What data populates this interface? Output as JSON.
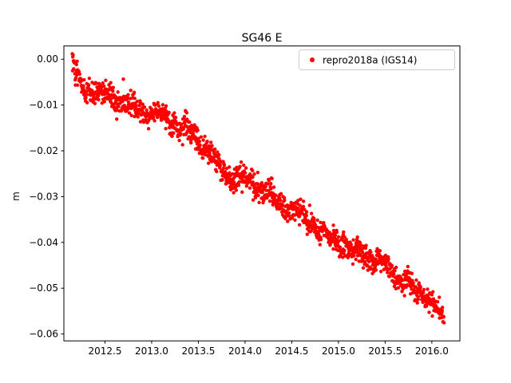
{
  "chart_data": {
    "type": "scatter",
    "title": "SG46 E",
    "xlabel": "",
    "ylabel": "m",
    "xlim": [
      2012.06,
      2016.3
    ],
    "ylim": [
      -0.0615,
      0.0029
    ],
    "x_ticks": [
      2012.5,
      2013.0,
      2013.5,
      2014.0,
      2014.5,
      2015.0,
      2015.5,
      2016.0
    ],
    "x_tick_labels": [
      "2012.5",
      "2013.0",
      "2013.5",
      "2014.0",
      "2014.5",
      "2015.0",
      "2015.5",
      "2016.0"
    ],
    "y_ticks": [
      0.0,
      -0.01,
      -0.02,
      -0.03,
      -0.04,
      -0.05,
      -0.06
    ],
    "y_tick_labels": [
      "0.00",
      "−0.01",
      "−0.02",
      "−0.03",
      "−0.04",
      "−0.05",
      "−0.06"
    ],
    "grid": false,
    "legend_position": "upper right",
    "legend_border_color": "#cccccc",
    "axis_color": "#000000",
    "series": [
      {
        "name": "repro2018a (IGS14)",
        "color": "#ff0000",
        "marker": "dot",
        "marker_radius": 2.2,
        "n_points": 1400,
        "x_start": 2012.15,
        "x_end": 2016.13,
        "noise_std": 0.0013,
        "trend": [
          [
            2012.15,
            0.0
          ],
          [
            2012.18,
            -0.003
          ],
          [
            2012.22,
            -0.005
          ],
          [
            2012.3,
            -0.0065
          ],
          [
            2012.45,
            -0.0075
          ],
          [
            2012.6,
            -0.0085
          ],
          [
            2012.8,
            -0.0105
          ],
          [
            2012.95,
            -0.0115
          ],
          [
            2013.1,
            -0.012
          ],
          [
            2013.3,
            -0.0145
          ],
          [
            2013.45,
            -0.017
          ],
          [
            2013.55,
            -0.0185
          ],
          [
            2013.7,
            -0.023
          ],
          [
            2013.85,
            -0.026
          ],
          [
            2014.0,
            -0.0262
          ],
          [
            2014.1,
            -0.027
          ],
          [
            2014.3,
            -0.0305
          ],
          [
            2014.5,
            -0.033
          ],
          [
            2014.7,
            -0.0355
          ],
          [
            2014.9,
            -0.039
          ],
          [
            2015.05,
            -0.0405
          ],
          [
            2015.25,
            -0.0425
          ],
          [
            2015.45,
            -0.0445
          ],
          [
            2015.6,
            -0.0465
          ],
          [
            2015.8,
            -0.05
          ],
          [
            2015.95,
            -0.052
          ],
          [
            2016.05,
            -0.0545
          ],
          [
            2016.13,
            -0.0575
          ]
        ]
      }
    ]
  }
}
